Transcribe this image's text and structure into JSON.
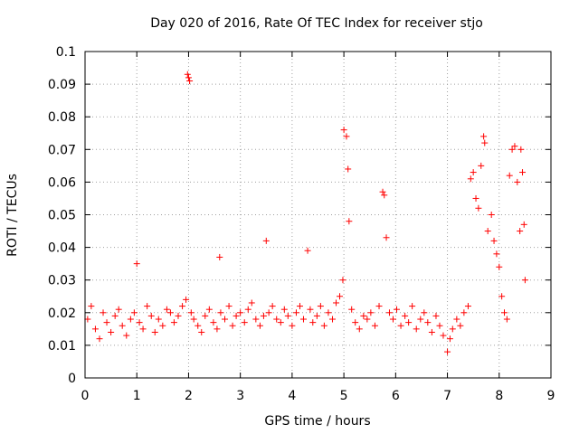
{
  "chart_data": {
    "type": "scatter",
    "title": "Day 020 of 2016, Rate Of TEC Index for receiver stjo",
    "xlabel": "GPS time / hours",
    "ylabel": "ROTI / TECUs",
    "xlim": [
      0,
      9
    ],
    "ylim": [
      0,
      0.1
    ],
    "x_ticks": [
      "0",
      "1",
      "2",
      "3",
      "4",
      "5",
      "6",
      "7",
      "8",
      "9"
    ],
    "y_ticks": [
      "0",
      "0.01",
      "0.02",
      "0.03",
      "0.04",
      "0.05",
      "0.06",
      "0.07",
      "0.08",
      "0.09",
      "0.1"
    ],
    "x_tick_values": [
      0,
      1,
      2,
      3,
      4,
      5,
      6,
      7,
      8,
      9
    ],
    "y_tick_values": [
      0,
      0.01,
      0.02,
      0.03,
      0.04,
      0.05,
      0.06,
      0.07,
      0.08,
      0.09,
      0.1
    ],
    "grid": true,
    "marker": "+",
    "color": "#ff0000",
    "series": [
      {
        "name": "ROTI",
        "x": [
          0.05,
          0.12,
          0.2,
          0.28,
          0.35,
          0.42,
          0.5,
          0.58,
          0.65,
          0.72,
          0.8,
          0.88,
          0.95,
          1.0,
          1.05,
          1.12,
          1.2,
          1.28,
          1.35,
          1.42,
          1.5,
          1.58,
          1.65,
          1.72,
          1.8,
          1.88,
          1.95,
          1.98,
          2.0,
          2.02,
          2.05,
          2.1,
          2.18,
          2.25,
          2.32,
          2.4,
          2.48,
          2.55,
          2.6,
          2.62,
          2.7,
          2.78,
          2.85,
          2.92,
          3.0,
          3.08,
          3.15,
          3.22,
          3.3,
          3.38,
          3.45,
          3.5,
          3.55,
          3.62,
          3.7,
          3.78,
          3.85,
          3.92,
          4.0,
          4.08,
          4.15,
          4.22,
          4.3,
          4.35,
          4.4,
          4.48,
          4.55,
          4.62,
          4.7,
          4.78,
          4.85,
          4.92,
          4.98,
          5.0,
          5.05,
          5.08,
          5.1,
          5.15,
          5.22,
          5.3,
          5.38,
          5.45,
          5.52,
          5.6,
          5.68,
          5.75,
          5.78,
          5.82,
          5.88,
          5.95,
          6.02,
          6.1,
          6.18,
          6.25,
          6.32,
          6.4,
          6.48,
          6.55,
          6.62,
          6.7,
          6.78,
          6.85,
          6.92,
          7.0,
          7.05,
          7.1,
          7.18,
          7.25,
          7.32,
          7.4,
          7.45,
          7.5,
          7.55,
          7.6,
          7.65,
          7.7,
          7.72,
          7.78,
          7.85,
          7.9,
          7.95,
          8.0,
          8.05,
          8.1,
          8.15,
          8.2,
          8.25,
          8.3,
          8.35,
          8.4,
          8.42,
          8.45,
          8.48,
          8.5
        ],
        "y": [
          0.018,
          0.022,
          0.015,
          0.012,
          0.02,
          0.017,
          0.014,
          0.019,
          0.021,
          0.016,
          0.013,
          0.018,
          0.02,
          0.035,
          0.017,
          0.015,
          0.022,
          0.019,
          0.014,
          0.018,
          0.016,
          0.021,
          0.02,
          0.017,
          0.019,
          0.022,
          0.024,
          0.093,
          0.092,
          0.091,
          0.02,
          0.018,
          0.016,
          0.014,
          0.019,
          0.021,
          0.017,
          0.015,
          0.037,
          0.02,
          0.018,
          0.022,
          0.016,
          0.019,
          0.02,
          0.017,
          0.021,
          0.023,
          0.018,
          0.016,
          0.019,
          0.042,
          0.02,
          0.022,
          0.018,
          0.017,
          0.021,
          0.019,
          0.016,
          0.02,
          0.022,
          0.018,
          0.039,
          0.021,
          0.017,
          0.019,
          0.022,
          0.016,
          0.02,
          0.018,
          0.023,
          0.025,
          0.03,
          0.076,
          0.074,
          0.064,
          0.048,
          0.021,
          0.017,
          0.015,
          0.019,
          0.018,
          0.02,
          0.016,
          0.022,
          0.057,
          0.056,
          0.043,
          0.02,
          0.018,
          0.021,
          0.016,
          0.019,
          0.017,
          0.022,
          0.015,
          0.018,
          0.02,
          0.017,
          0.014,
          0.019,
          0.016,
          0.013,
          0.008,
          0.012,
          0.015,
          0.018,
          0.016,
          0.02,
          0.022,
          0.061,
          0.063,
          0.055,
          0.052,
          0.065,
          0.074,
          0.072,
          0.045,
          0.05,
          0.042,
          0.038,
          0.034,
          0.025,
          0.02,
          0.018,
          0.062,
          0.07,
          0.071,
          0.06,
          0.045,
          0.07,
          0.063,
          0.047,
          0.03
        ]
      }
    ]
  }
}
